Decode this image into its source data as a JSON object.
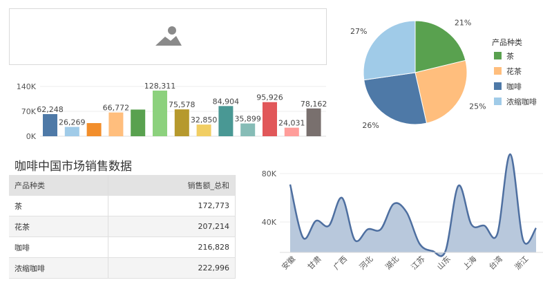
{
  "image_placeholder": {
    "icon": "image-icon"
  },
  "chart_data": [
    {
      "type": "bar",
      "categories": [
        "",
        "",
        "",
        "",
        "",
        "",
        "",
        "",
        "",
        "",
        "",
        "",
        "",
        ""
      ],
      "values": [
        62248,
        26269,
        37000,
        66772,
        75000,
        128311,
        75578,
        32850,
        84904,
        35899,
        95926,
        24031,
        78162,
        null
      ],
      "labels": [
        "62,248",
        "26,269",
        "",
        "66,772",
        "",
        "128,311",
        "75,578",
        "32,850",
        "84,904",
        "35,899",
        "95,926",
        "24,031",
        "78,162",
        ""
      ],
      "colors": [
        "#4e79a7",
        "#a0cbe8",
        "#f28e2b",
        "#ffbe7d",
        "#59a14f",
        "#8cd17d",
        "#b6992d",
        "#f1ce63",
        "#499894",
        "#86bcb6",
        "#e15759",
        "#ff9d9a",
        "#79706e",
        "#79706e"
      ],
      "yticks": [
        "140K",
        "70K",
        "0K"
      ],
      "ylim": [
        0,
        140000
      ]
    },
    {
      "type": "pie",
      "legend_title": "产品种类",
      "legend_position": "right",
      "slices": [
        {
          "name": "茶",
          "value": 21,
          "label": "21%",
          "color": "#59a14f"
        },
        {
          "name": "花茶",
          "value": 25,
          "label": "25%",
          "color": "#ffbe7d"
        },
        {
          "name": "咖啡",
          "value": 26,
          "label": "26%",
          "color": "#4e79a7"
        },
        {
          "name": "浓缩咖啡",
          "value": 27,
          "label": "27%",
          "color": "#a0cbe8"
        }
      ]
    },
    {
      "type": "table",
      "title": "咖啡中国市场销售数据",
      "columns": [
        "产品种类",
        "销售额_总和"
      ],
      "rows": [
        [
          "茶",
          "172,773"
        ],
        [
          "花茶",
          "207,214"
        ],
        [
          "咖啡",
          "216,828"
        ],
        [
          "浓缩咖啡",
          "222,996"
        ]
      ]
    },
    {
      "type": "area",
      "x": [
        "安徽",
        "",
        "甘肃",
        "",
        "广西",
        "",
        "河北",
        "",
        "湖北",
        "",
        "江苏",
        "",
        "山东",
        "",
        "上海",
        "",
        "台湾",
        "",
        "浙江",
        ""
      ],
      "xtick_labels": [
        "安徽",
        "甘肃",
        "广西",
        "河北",
        "湖北",
        "江苏",
        "山东",
        "上海",
        "台湾",
        "浙江"
      ],
      "values": [
        71000,
        27000,
        41000,
        37000,
        60000,
        25000,
        34000,
        34000,
        55000,
        48000,
        22000,
        16000,
        16000,
        70000,
        38000,
        37000,
        30000,
        96000,
        25000,
        35000
      ],
      "yticks": [
        "80K",
        "40K"
      ],
      "ylim": [
        16500,
        96000
      ],
      "line_color": "#4e6fa0",
      "fill_color": "#b8c8dc"
    }
  ]
}
